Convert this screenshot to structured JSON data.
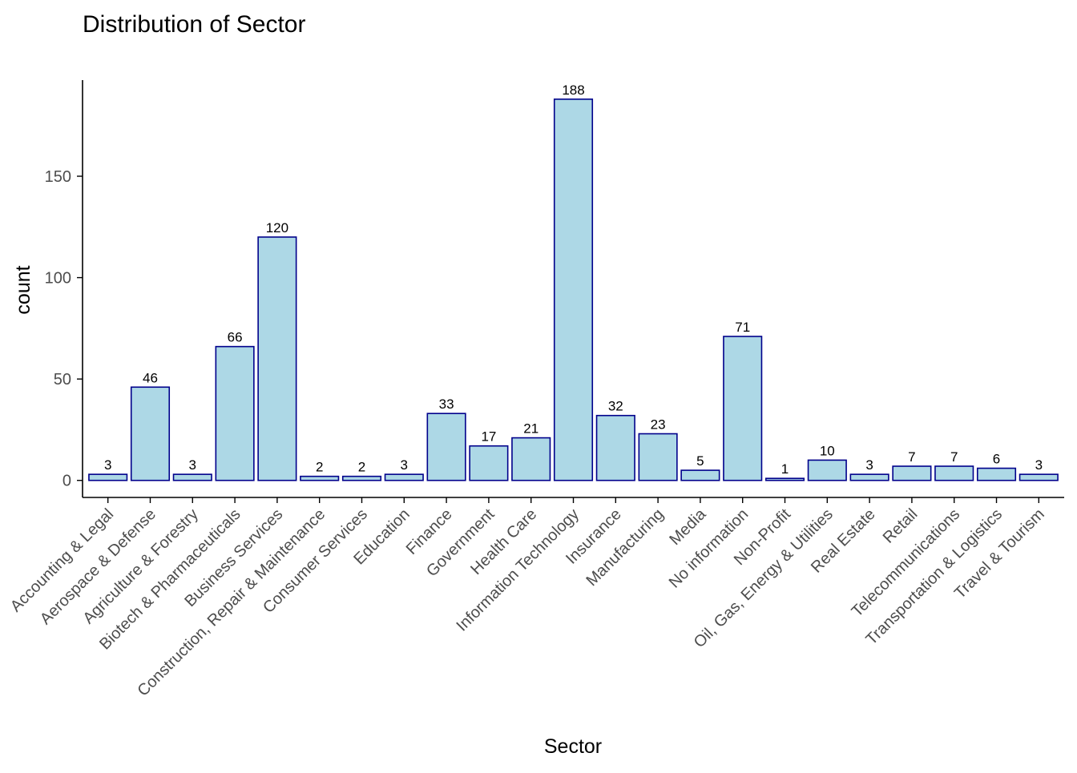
{
  "chart_data": {
    "type": "bar",
    "title": "Distribution of Sector",
    "xlabel": "Sector",
    "ylabel": "count",
    "categories": [
      "Accounting & Legal",
      "Aerospace & Defense",
      "Agriculture & Forestry",
      "Biotech & Pharmaceuticals",
      "Business Services",
      "Construction, Repair & Maintenance",
      "Consumer Services",
      "Education",
      "Finance",
      "Government",
      "Health Care",
      "Information Technology",
      "Insurance",
      "Manufacturing",
      "Media",
      "No information",
      "Non-Profit",
      "Oil, Gas, Energy & Utilities",
      "Real Estate",
      "Retail",
      "Telecommunications",
      "Transportation & Logistics",
      "Travel & Tourism"
    ],
    "values": [
      3,
      46,
      3,
      66,
      120,
      2,
      2,
      3,
      33,
      17,
      21,
      188,
      32,
      23,
      5,
      71,
      1,
      10,
      3,
      7,
      7,
      6,
      3
    ],
    "data_labels": [
      "3",
      "46",
      "3",
      "66",
      "120",
      "2",
      "2",
      "3",
      "33",
      "17",
      "21",
      "188",
      "32",
      "23",
      "5",
      "71",
      "1",
      "10",
      "3",
      "7",
      "7",
      "6",
      "3"
    ],
    "ylim": [
      -8.4,
      197.4
    ],
    "yticks": [
      0,
      50,
      100,
      150
    ],
    "ytick_labels": [
      "0",
      "50",
      "100",
      "150"
    ],
    "grid": false,
    "legend": "none",
    "colors": {
      "bar_fill": "#add8e6",
      "bar_stroke": "#00008b",
      "axis": "#000000",
      "tick_text": "#4d4d4d"
    }
  }
}
